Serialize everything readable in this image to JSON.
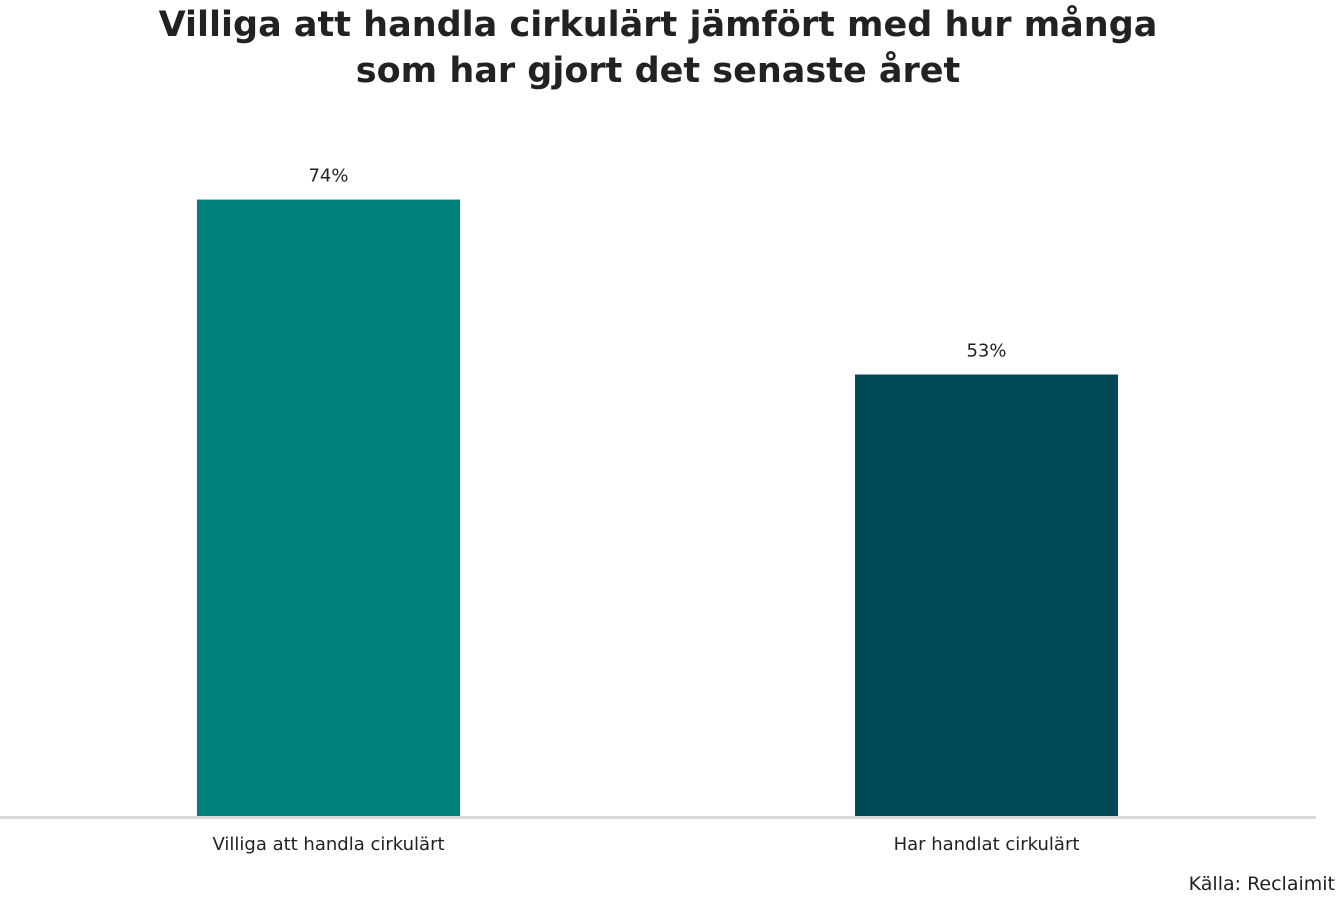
{
  "chart_data": {
    "type": "bar",
    "title": "Villiga att handla cirkulärt jämfört med hur många som har gjort det senaste året",
    "title_lines": [
      "Villiga att handla cirkulärt jämfört med hur många",
      "som har gjort det senaste året"
    ],
    "categories": [
      "Villiga att handla cirkulärt",
      "Har handlat cirkulärt"
    ],
    "values": [
      74,
      53
    ],
    "data_labels": [
      "74%",
      "53%"
    ],
    "colors": [
      "#00807d",
      "#004853"
    ],
    "axis_color": "#d9d9d9",
    "unit": "%",
    "ylim": [
      0,
      100
    ],
    "grid": false,
    "legend": "none",
    "xlabel": "",
    "ylabel": ""
  },
  "source": "Källa: Reclaimit"
}
